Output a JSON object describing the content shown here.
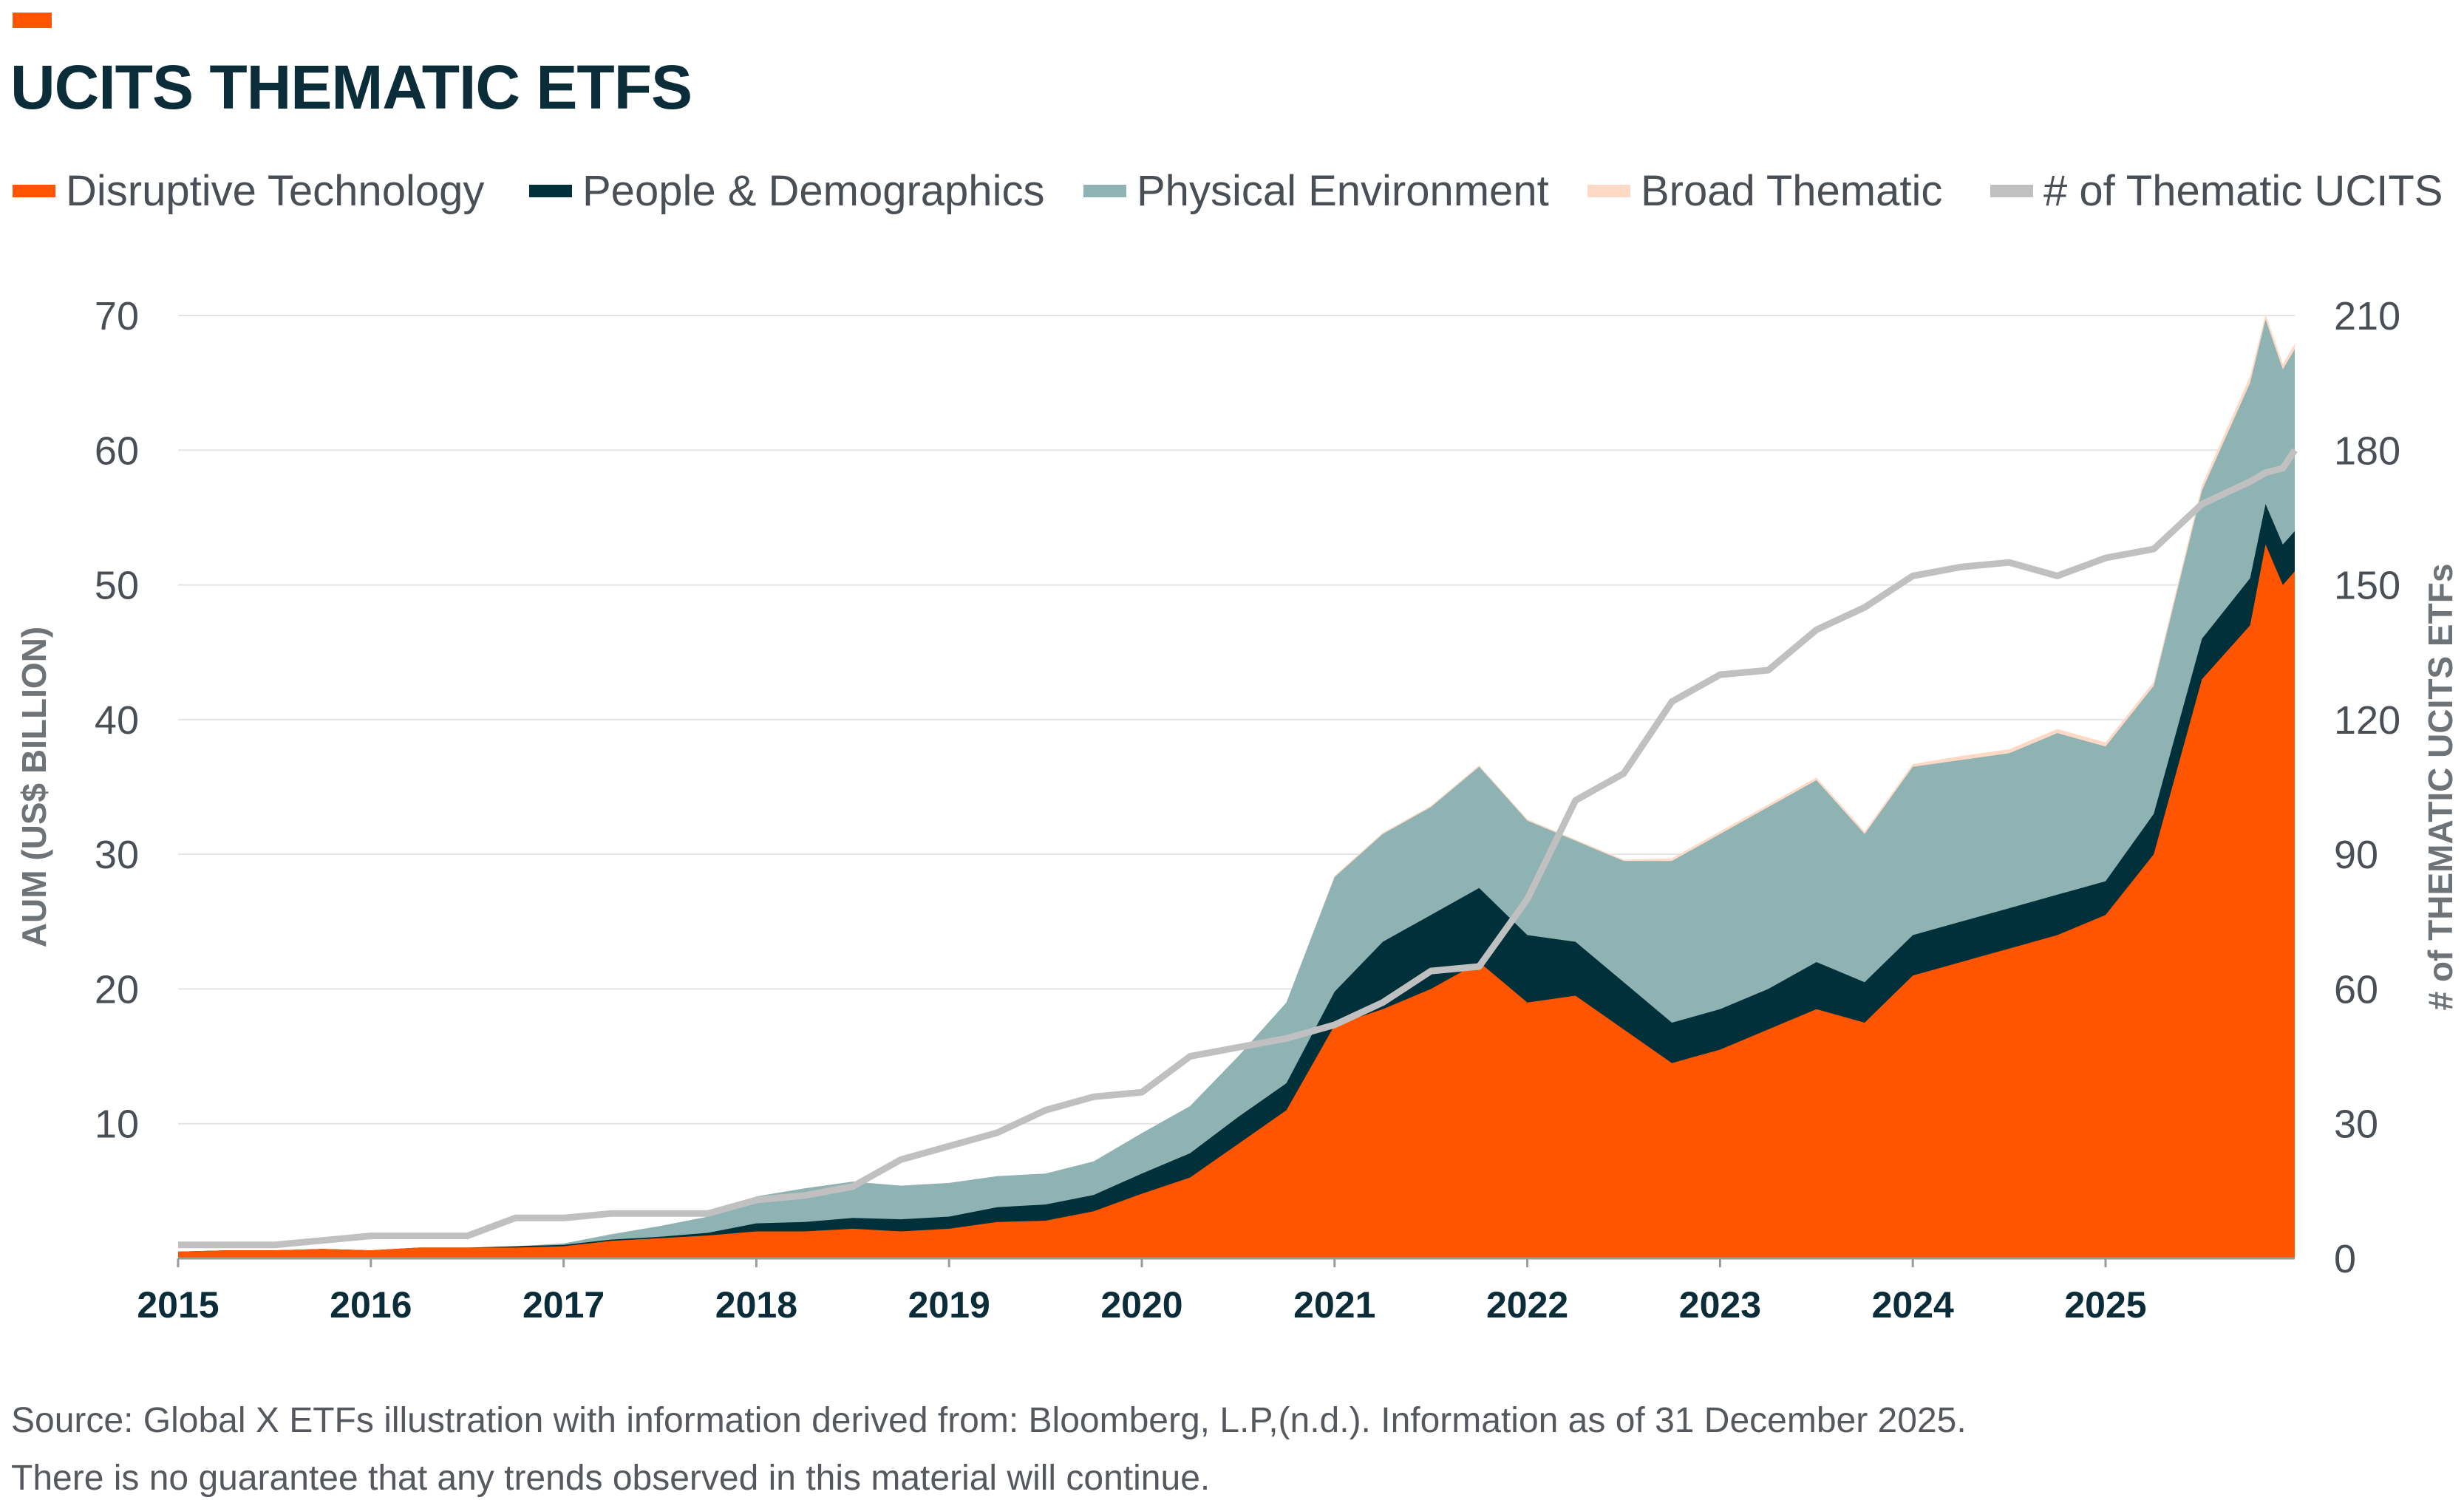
{
  "title": "UCITS THEMATIC ETFS",
  "legend": [
    {
      "label": "Disruptive Technology",
      "color": "#ff5500"
    },
    {
      "label": "People & Demographics",
      "color": "#00303a"
    },
    {
      "label": "Physical Environment",
      "color": "#8fb2b2"
    },
    {
      "label": "Broad Thematic",
      "color": "#fdd9c6"
    },
    {
      "label": "# of Thematic UCITS",
      "color": "#c0c0c0"
    }
  ],
  "footer": {
    "source": "Source: Global X ETFs illustration with information derived from: Bloomberg, L.P,(n.d.). Information as of 31 December 2025.",
    "disclaimer": "There is no guarantee that any trends observed in this material will continue."
  },
  "chart_data": {
    "type": "area",
    "stacked": true,
    "title": "UCITS THEMATIC ETFS",
    "ylabel": "AUM (US$ BILLION)",
    "y2label": "# of THEMATIC UCITS ETFs",
    "ylim": [
      0,
      70
    ],
    "y2lim": [
      0,
      210
    ],
    "yticks": [
      "10",
      "20",
      "30",
      "40",
      "50",
      "60",
      "70"
    ],
    "y2ticks": [
      "0",
      "30",
      "60",
      "90",
      "120",
      "150",
      "180",
      "210"
    ],
    "xticks": [
      "2015",
      "2016",
      "2017",
      "2018",
      "2019",
      "2020",
      "2021",
      "2022",
      "2023",
      "2024",
      "2025"
    ],
    "grid": true,
    "legend_position": "top",
    "x": [
      2015.0,
      2015.25,
      2015.5,
      2015.75,
      2016.0,
      2016.25,
      2016.5,
      2016.75,
      2017.0,
      2017.25,
      2017.5,
      2017.75,
      2018.0,
      2018.25,
      2018.5,
      2018.75,
      2019.0,
      2019.25,
      2019.5,
      2019.75,
      2020.0,
      2020.25,
      2020.5,
      2020.75,
      2021.0,
      2021.25,
      2021.5,
      2021.75,
      2022.0,
      2022.25,
      2022.5,
      2022.75,
      2023.0,
      2023.25,
      2023.5,
      2023.75,
      2024.0,
      2024.25,
      2024.5,
      2024.75,
      2025.0,
      2025.25,
      2025.5,
      2025.75,
      2025.83,
      2025.92,
      2026.0
    ],
    "series": [
      {
        "name": "Disruptive Technology",
        "axis": "left",
        "values": [
          0.5,
          0.6,
          0.6,
          0.7,
          0.6,
          0.8,
          0.8,
          0.8,
          0.9,
          1.3,
          1.5,
          1.7,
          2.0,
          2.0,
          2.2,
          2.0,
          2.2,
          2.7,
          2.8,
          3.5,
          4.8,
          6.0,
          8.5,
          11.0,
          17.3,
          18.5,
          20.0,
          22.0,
          19.0,
          19.5,
          17.0,
          14.5,
          15.5,
          17.0,
          18.5,
          17.5,
          21.0,
          22.0,
          23.0,
          24.0,
          25.5,
          30.0,
          43.0,
          47.0,
          53.0,
          50.0,
          51.0
        ]
      },
      {
        "name": "People & Demographics",
        "axis": "left",
        "values": [
          0,
          0,
          0,
          0,
          0,
          0,
          0,
          0.1,
          0.1,
          0.1,
          0.1,
          0.2,
          0.6,
          0.7,
          0.8,
          0.9,
          0.9,
          1.1,
          1.2,
          1.2,
          1.5,
          1.8,
          2.0,
          2.0,
          2.5,
          5.0,
          5.5,
          5.5,
          5.0,
          4.0,
          3.5,
          3.0,
          3.0,
          3.0,
          3.5,
          3.0,
          3.0,
          3.0,
          3.0,
          3.0,
          2.5,
          3.0,
          3.0,
          3.5,
          3.0,
          3.0,
          3.0
        ]
      },
      {
        "name": "Physical Environment",
        "axis": "left",
        "values": [
          0,
          0,
          0,
          0,
          0,
          0,
          0,
          0,
          0.1,
          0.4,
          0.8,
          1.2,
          2.0,
          2.5,
          2.7,
          2.5,
          2.5,
          2.3,
          2.3,
          2.5,
          3.0,
          3.5,
          4.5,
          6.0,
          8.5,
          8.0,
          8.0,
          9.0,
          8.5,
          7.5,
          9.0,
          12.0,
          13.0,
          13.5,
          13.5,
          11.0,
          12.5,
          12.0,
          11.5,
          12.0,
          10.0,
          9.5,
          11.0,
          14.5,
          13.7,
          13.0,
          13.5
        ]
      },
      {
        "name": "Broad Thematic",
        "axis": "left",
        "values": [
          0,
          0,
          0,
          0,
          0,
          0,
          0,
          0,
          0,
          0,
          0,
          0,
          0,
          0,
          0,
          0,
          0,
          0,
          0,
          0,
          0,
          0,
          0,
          0,
          0.1,
          0.1,
          0.1,
          0.1,
          0.1,
          0.1,
          0.1,
          0.2,
          0.2,
          0.2,
          0.2,
          0.2,
          0.2,
          0.3,
          0.3,
          0.3,
          0.3,
          0.3,
          0.4,
          0.5,
          0.4,
          0.4,
          0.4
        ]
      },
      {
        "name": "# of Thematic UCITS",
        "axis": "right",
        "type": "line",
        "values": [
          3,
          3,
          3,
          4,
          5,
          5,
          5,
          9,
          9,
          10,
          10,
          10,
          13,
          14,
          16,
          22,
          25,
          28,
          33,
          36,
          37,
          45,
          47,
          49,
          52,
          57,
          64,
          65,
          80,
          102,
          108,
          124,
          130,
          131,
          140,
          145,
          152,
          154,
          155,
          152,
          156,
          158,
          168,
          173,
          175,
          176,
          180
        ]
      }
    ]
  }
}
